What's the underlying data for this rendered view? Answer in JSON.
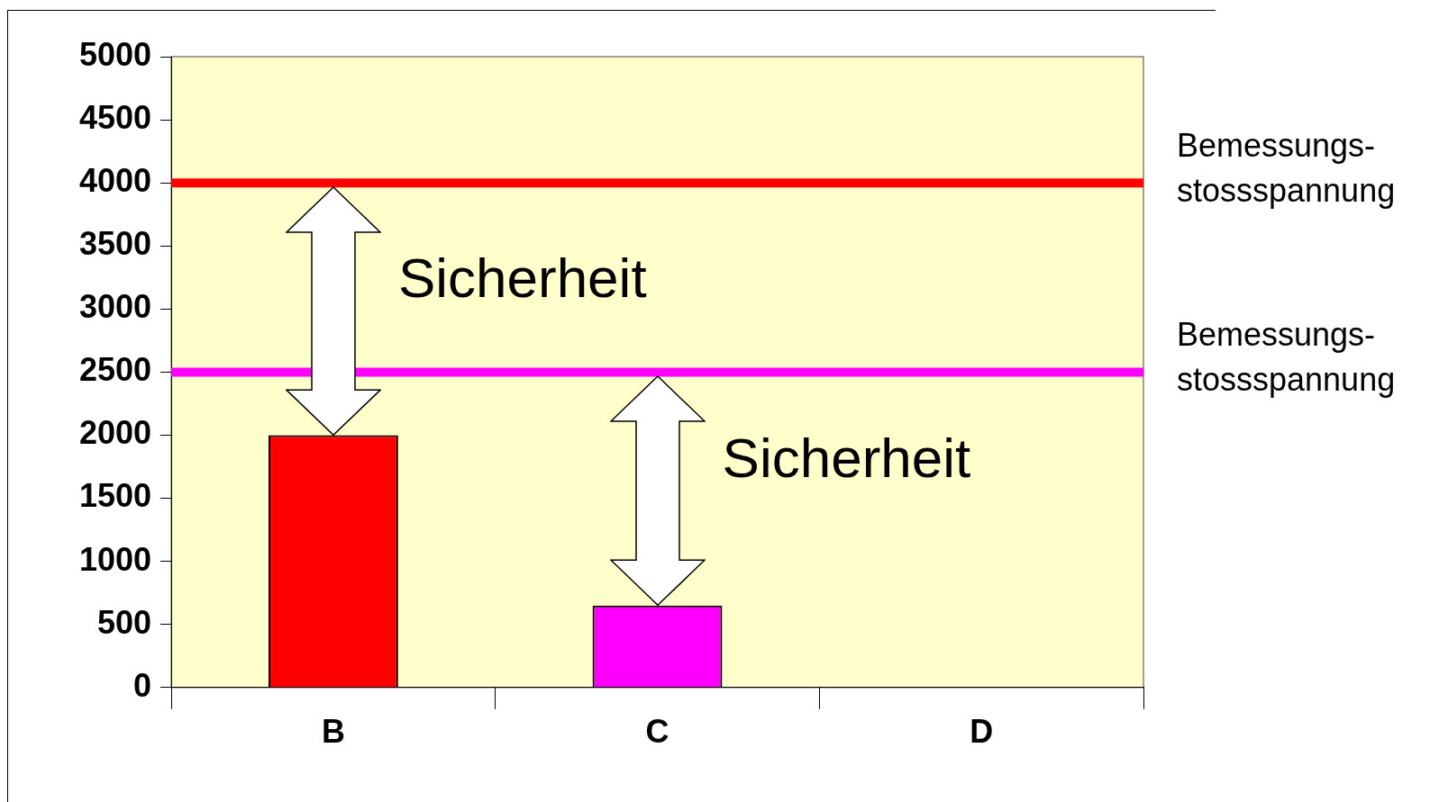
{
  "chart_data": {
    "type": "bar",
    "categories": [
      "B",
      "C",
      "D"
    ],
    "values": [
      2000,
      650,
      null
    ],
    "colors": [
      "#ff0000",
      "#ff00ff",
      "#ff00ff"
    ],
    "ylim": [
      0,
      5000
    ],
    "yticks": [
      0,
      500,
      1000,
      1500,
      2000,
      2500,
      3000,
      3500,
      4000,
      4500,
      5000
    ],
    "grid": false,
    "legend": false,
    "ref_lines": [
      {
        "axis": "y",
        "value": 4000,
        "label": "Bemessungs-\nstossspannung",
        "color": "#ff0000"
      },
      {
        "axis": "y",
        "value": 2500,
        "label": "Bemessungs-\nstossspannung",
        "color": "#ff00ff"
      }
    ],
    "annotations": [
      "Sicherheit",
      "Sicherheit"
    ]
  }
}
